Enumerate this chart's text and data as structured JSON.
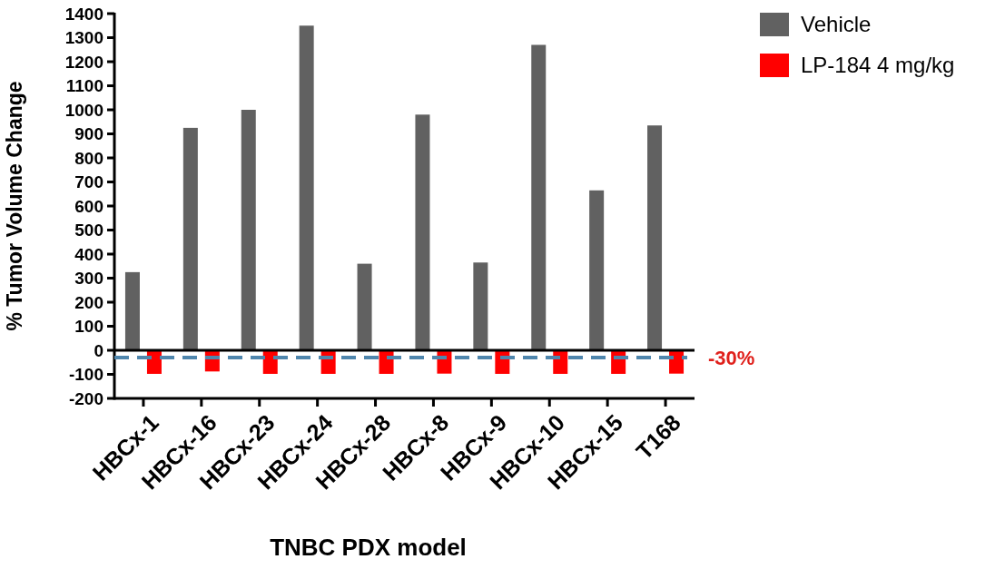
{
  "chart_data": {
    "type": "bar",
    "xlabel": "TNBC PDX model",
    "ylabel": "% Tumor Volume Change",
    "categories": [
      "HBCx-1",
      "HBCx-16",
      "HBCx-23",
      "HBCx-24",
      "HBCx-28",
      "HBCx-8",
      "HBCx-9",
      "HBCx-10",
      "HBCx-15",
      "T168"
    ],
    "series": [
      {
        "name": "Vehicle",
        "color": "#616161",
        "values": [
          325,
          925,
          1000,
          1350,
          360,
          980,
          365,
          1270,
          665,
          935
        ]
      },
      {
        "name": "LP-184 4 mg/kg",
        "color": "#ff0000",
        "values": [
          -98,
          -88,
          -98,
          -98,
          -98,
          -97,
          -98,
          -98,
          -98,
          -97
        ]
      }
    ],
    "ylim": [
      -200,
      1400
    ],
    "yticks": [
      -200,
      -100,
      0,
      100,
      200,
      300,
      400,
      500,
      600,
      700,
      800,
      900,
      1000,
      1100,
      1200,
      1300,
      1400
    ],
    "ref_lines": [
      {
        "axis": "y",
        "value": -30,
        "label": "-30%",
        "color": "#4f86ad",
        "line_style": "dashed"
      }
    ],
    "legend": "top right"
  }
}
